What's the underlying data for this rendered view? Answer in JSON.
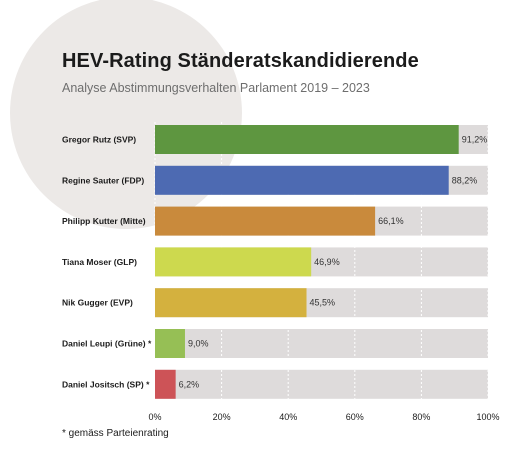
{
  "chart_data": {
    "type": "bar",
    "orientation": "horizontal",
    "title": "HEV-Rating Ständeratskandidierende",
    "subtitle": "Analyse Abstimmungsverhalten Parlament 2019 – 2023",
    "categories": [
      "Gregor Rutz (SVP)",
      "Regine Sauter (FDP)",
      "Philipp Kutter (Mitte)",
      "Tiana Moser (GLP)",
      "Nik Gugger (EVP)",
      "Daniel Leupi (Grüne) *",
      "Daniel Jositsch (SP) *"
    ],
    "values": [
      91.2,
      88.2,
      66.1,
      46.9,
      45.5,
      9.0,
      6.2
    ],
    "value_labels": [
      "91,2%",
      "88,2%",
      "66,1%",
      "46,9%",
      "45,5%",
      "9,0%",
      "6,2%"
    ],
    "bar_colors": [
      "#5e9640",
      "#4d6ab2",
      "#c98a3c",
      "#cdd94e",
      "#d4b13e",
      "#96bf55",
      "#cd5357"
    ],
    "background_bar_color": "#dedbdb",
    "xlim": [
      0,
      100
    ],
    "xticks": [
      0,
      20,
      40,
      60,
      80,
      100
    ],
    "xtick_labels": [
      "0%",
      "20%",
      "40%",
      "60%",
      "80%",
      "100%"
    ],
    "xlabel": "",
    "ylabel": "",
    "grid": "vertical",
    "legend": "none",
    "footnote": "* gemäss Parteienrating"
  }
}
